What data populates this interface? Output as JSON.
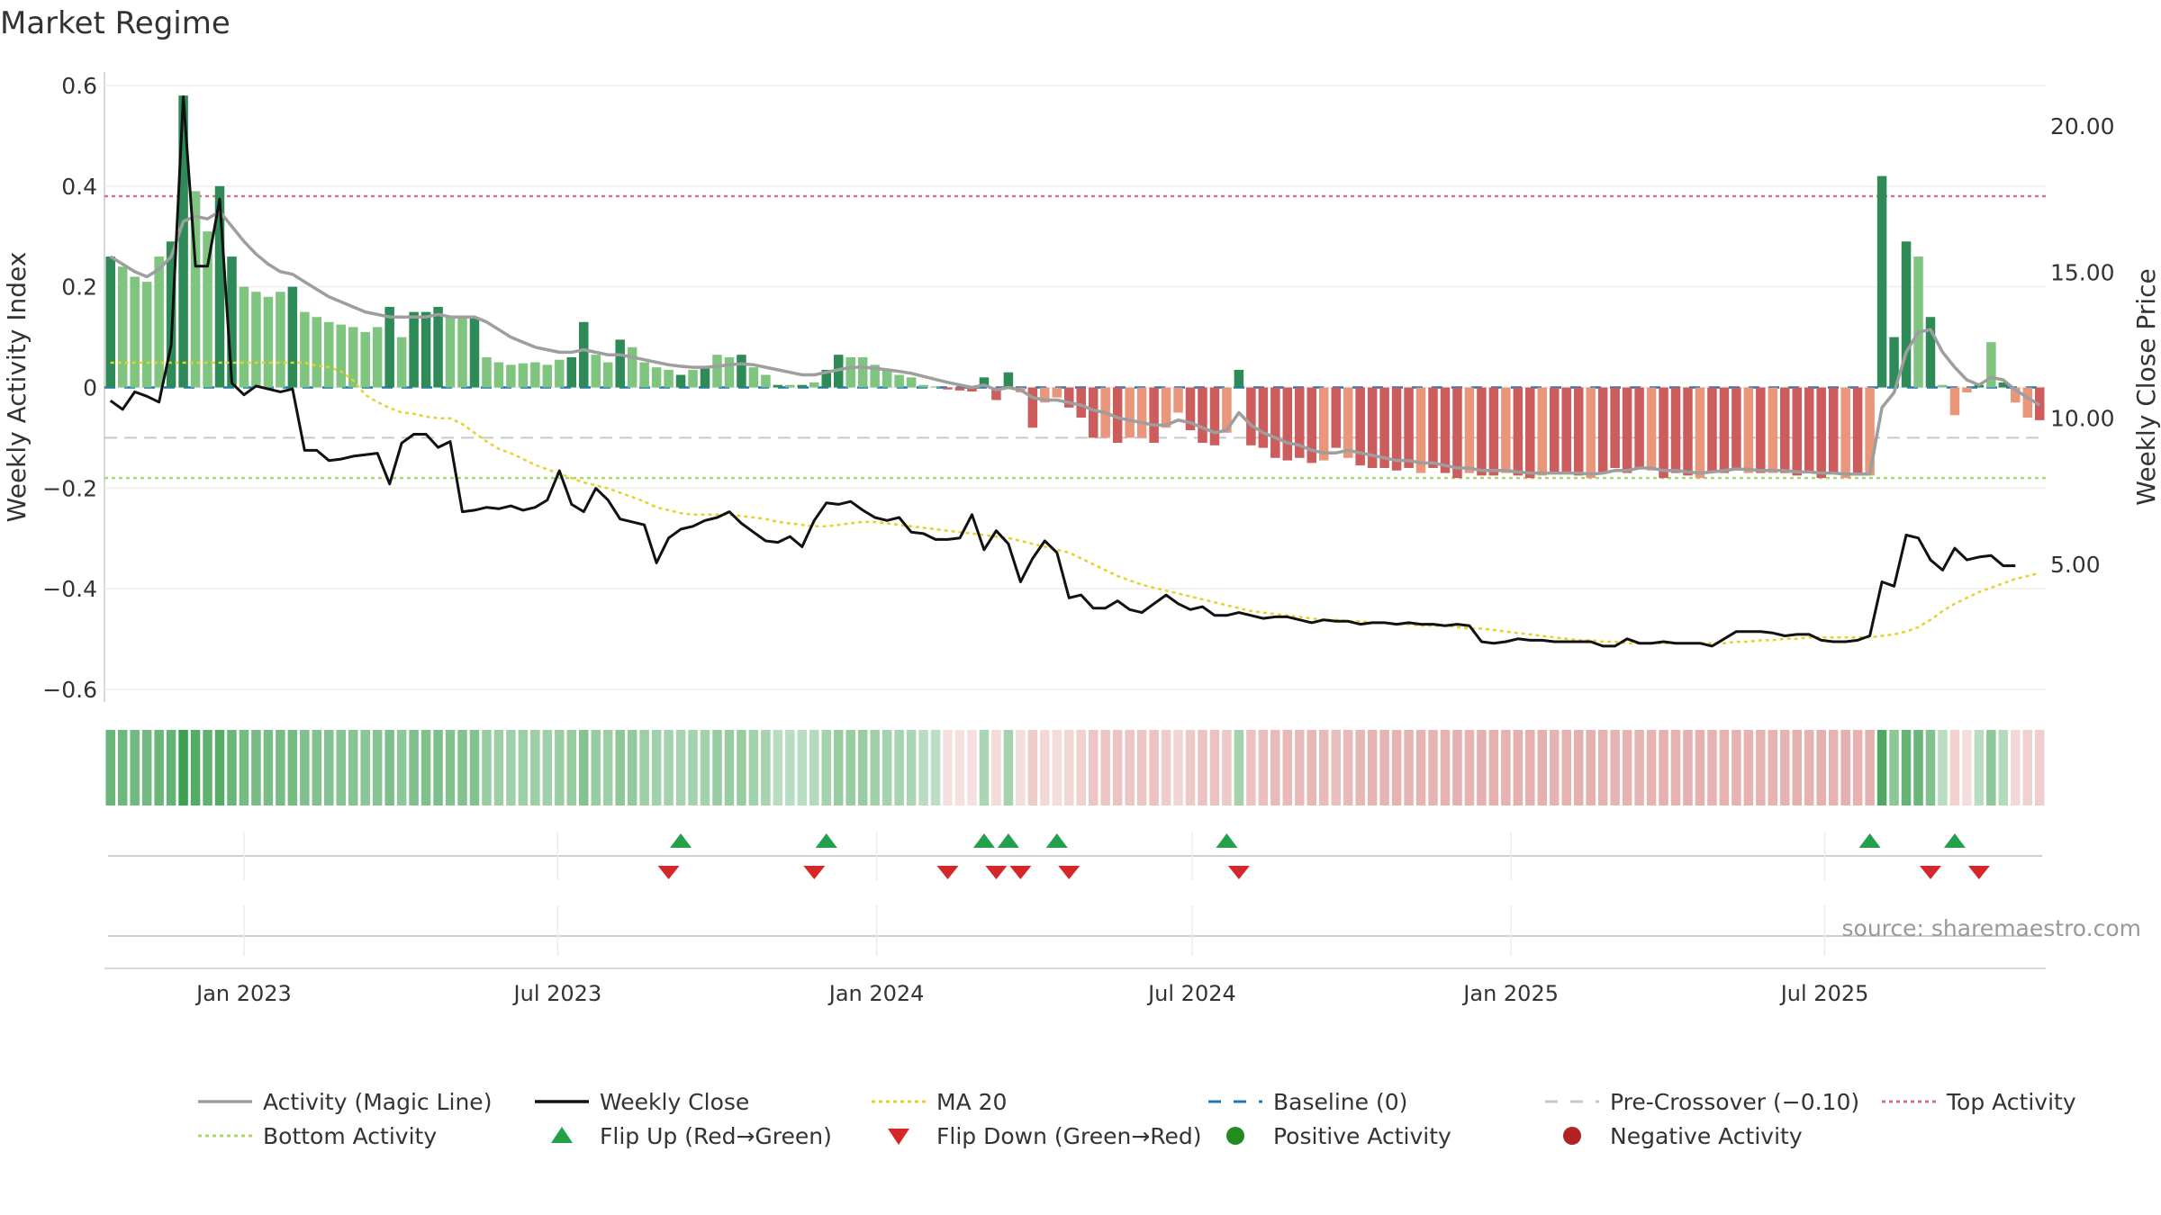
{
  "title": "Market Regime",
  "source": "source: sharemaestro.com",
  "colors": {
    "dark_green": "#2e8b57",
    "light_green": "#7fc47f",
    "dark_red": "#cd5c5c",
    "light_red": "#e9967a",
    "magic_line": "#9e9e9e",
    "close": "#111111",
    "ma20": "#e6d22e",
    "baseline": "#1f77b4",
    "pre_cross": "#c8c8c8",
    "top": "#d9728f",
    "bottom": "#a8d86a",
    "flip_up": "#22a04a",
    "flip_down": "#d62728",
    "pos_dot": "#228b22",
    "neg_dot": "#b22222"
  },
  "chart_data": {
    "type": "bar",
    "x_start_week": "2022-10-16",
    "x_ticks": [
      "Jan 2023",
      "Jul 2023",
      "Jan 2024",
      "Jul 2024",
      "Jan 2025",
      "Jul 2025"
    ],
    "y_left": {
      "label": "Weekly Activity Index",
      "ylim": [
        -0.62,
        0.62
      ],
      "ticks": [
        "0.6",
        "0.4",
        "0.2",
        "0",
        "−0.2",
        "−0.4",
        "−0.6"
      ],
      "tick_values": [
        0.6,
        0.4,
        0.2,
        0,
        -0.2,
        -0.4,
        -0.6
      ]
    },
    "y_right": {
      "label": "Weekly Close Price",
      "ylim": [
        0.8,
        23.7
      ],
      "ticks": [
        "20.00",
        "15.00",
        "10.00",
        "5.00"
      ],
      "tick_values": [
        20,
        15,
        10,
        5
      ]
    },
    "levels": {
      "top": 0.38,
      "bottom": -0.18,
      "pre_crossover": -0.1,
      "baseline": 0
    },
    "activity": [
      0.26,
      0.24,
      0.22,
      0.21,
      0.26,
      0.29,
      0.58,
      0.39,
      0.31,
      0.4,
      0.26,
      0.2,
      0.19,
      0.18,
      0.19,
      0.2,
      0.15,
      0.14,
      0.13,
      0.125,
      0.12,
      0.11,
      0.12,
      0.16,
      0.1,
      0.15,
      0.15,
      0.16,
      0.14,
      0.14,
      0.14,
      0.06,
      0.05,
      0.045,
      0.048,
      0.05,
      0.045,
      0.055,
      0.06,
      0.13,
      0.065,
      0.05,
      0.095,
      0.08,
      0.05,
      0.04,
      0.035,
      0.025,
      0.035,
      0.04,
      0.065,
      0.06,
      0.065,
      0.04,
      0.025,
      0.005,
      0.005,
      0.005,
      0.01,
      0.035,
      0.065,
      0.06,
      0.06,
      0.045,
      0.035,
      0.025,
      0.02,
      0.005,
      0.002,
      -0.004,
      -0.006,
      -0.008,
      0.02,
      -0.025,
      0.03,
      -0.01,
      -0.08,
      -0.03,
      -0.02,
      -0.04,
      -0.06,
      -0.1,
      -0.1,
      -0.11,
      -0.1,
      -0.1,
      -0.11,
      -0.08,
      -0.05,
      -0.085,
      -0.11,
      -0.115,
      -0.09,
      0.035,
      -0.115,
      -0.12,
      -0.14,
      -0.145,
      -0.14,
      -0.15,
      -0.145,
      -0.12,
      -0.14,
      -0.155,
      -0.16,
      -0.16,
      -0.165,
      -0.16,
      -0.17,
      -0.16,
      -0.17,
      -0.18,
      -0.17,
      -0.175,
      -0.175,
      -0.17,
      -0.175,
      -0.18,
      -0.175,
      -0.17,
      -0.17,
      -0.175,
      -0.18,
      -0.17,
      -0.16,
      -0.17,
      -0.16,
      -0.165,
      -0.18,
      -0.17,
      -0.175,
      -0.18,
      -0.17,
      -0.17,
      -0.165,
      -0.17,
      -0.17,
      -0.17,
      -0.17,
      -0.175,
      -0.17,
      -0.18,
      -0.17,
      -0.18,
      -0.17,
      -0.175,
      0.42,
      0.1,
      0.29,
      0.26,
      0.14,
      0.005,
      -0.055,
      -0.01,
      0.005,
      0.09,
      0.01,
      -0.03,
      -0.06,
      -0.065
    ],
    "activity_shade": [
      1,
      0,
      0,
      0,
      0,
      1,
      1,
      0,
      0,
      1,
      1,
      0,
      0,
      0,
      0,
      1,
      0,
      0,
      0,
      0,
      0,
      0,
      0,
      1,
      0,
      1,
      1,
      1,
      0,
      0,
      1,
      0,
      0,
      0,
      0,
      0,
      0,
      0,
      1,
      1,
      0,
      0,
      1,
      0,
      0,
      0,
      0,
      1,
      0,
      1,
      0,
      0,
      1,
      0,
      0,
      1,
      0,
      1,
      0,
      1,
      1,
      0,
      0,
      0,
      0,
      0,
      0,
      0,
      0,
      1,
      1,
      1,
      1,
      1,
      1,
      0,
      1,
      0,
      0,
      1,
      1,
      1,
      0,
      1,
      0,
      0,
      1,
      0,
      0,
      1,
      1,
      1,
      0,
      1,
      1,
      1,
      1,
      1,
      1,
      1,
      0,
      1,
      0,
      1,
      1,
      1,
      1,
      1,
      0,
      1,
      1,
      1,
      0,
      1,
      1,
      0,
      1,
      1,
      0,
      1,
      1,
      1,
      0,
      1,
      1,
      1,
      1,
      0,
      1,
      1,
      1,
      0,
      1,
      1,
      1,
      0,
      1,
      0,
      1,
      1,
      1,
      1,
      1,
      0,
      1,
      0,
      1,
      1,
      1,
      0,
      1,
      0,
      0,
      0,
      1,
      0,
      1,
      0,
      0,
      1,
      1
    ],
    "magic_line": [
      0.26,
      0.245,
      0.23,
      0.22,
      0.235,
      0.26,
      0.33,
      0.34,
      0.335,
      0.35,
      0.32,
      0.29,
      0.265,
      0.245,
      0.23,
      0.225,
      0.21,
      0.195,
      0.18,
      0.17,
      0.16,
      0.15,
      0.145,
      0.14,
      0.14,
      0.14,
      0.14,
      0.145,
      0.14,
      0.14,
      0.14,
      0.13,
      0.115,
      0.1,
      0.09,
      0.08,
      0.075,
      0.07,
      0.07,
      0.075,
      0.07,
      0.065,
      0.065,
      0.06,
      0.055,
      0.05,
      0.045,
      0.042,
      0.04,
      0.04,
      0.042,
      0.045,
      0.047,
      0.045,
      0.04,
      0.035,
      0.03,
      0.025,
      0.025,
      0.03,
      0.035,
      0.04,
      0.04,
      0.038,
      0.035,
      0.032,
      0.028,
      0.022,
      0.016,
      0.01,
      0.005,
      0,
      0.005,
      -0.005,
      0,
      -0.005,
      -0.02,
      -0.025,
      -0.025,
      -0.03,
      -0.035,
      -0.045,
      -0.05,
      -0.06,
      -0.065,
      -0.07,
      -0.075,
      -0.075,
      -0.065,
      -0.07,
      -0.08,
      -0.09,
      -0.085,
      -0.05,
      -0.075,
      -0.09,
      -0.1,
      -0.11,
      -0.115,
      -0.125,
      -0.13,
      -0.13,
      -0.125,
      -0.13,
      -0.135,
      -0.14,
      -0.145,
      -0.145,
      -0.15,
      -0.15,
      -0.155,
      -0.16,
      -0.16,
      -0.165,
      -0.165,
      -0.165,
      -0.168,
      -0.17,
      -0.17,
      -0.17,
      -0.17,
      -0.17,
      -0.172,
      -0.17,
      -0.165,
      -0.165,
      -0.16,
      -0.16,
      -0.165,
      -0.165,
      -0.168,
      -0.17,
      -0.168,
      -0.165,
      -0.162,
      -0.163,
      -0.165,
      -0.165,
      -0.165,
      -0.168,
      -0.168,
      -0.17,
      -0.17,
      -0.172,
      -0.172,
      -0.172,
      -0.04,
      -0.01,
      0.07,
      0.11,
      0.115,
      0.07,
      0.04,
      0.015,
      0.005,
      0.02,
      0.015,
      -0.005,
      -0.02,
      -0.035
    ],
    "weekly_close": [
      10.6,
      10.3,
      10.9,
      10.75,
      10.55,
      12.5,
      21.0,
      15.2,
      15.2,
      17.5,
      11.2,
      10.8,
      11.1,
      11.0,
      10.9,
      11.0,
      8.9,
      8.9,
      8.55,
      8.6,
      8.7,
      8.75,
      8.8,
      7.75,
      9.15,
      9.45,
      9.45,
      9.0,
      9.2,
      6.8,
      6.85,
      6.95,
      6.9,
      7.0,
      6.85,
      6.95,
      7.2,
      8.2,
      7.05,
      6.8,
      7.6,
      7.2,
      6.55,
      6.45,
      6.35,
      5.05,
      5.9,
      6.2,
      6.3,
      6.5,
      6.6,
      6.8,
      6.4,
      6.1,
      5.8,
      5.75,
      5.95,
      5.6,
      6.5,
      7.1,
      7.05,
      7.15,
      6.85,
      6.6,
      6.5,
      6.6,
      6.1,
      6.05,
      5.85,
      5.85,
      5.9,
      6.7,
      5.5,
      6.15,
      5.7,
      4.4,
      5.2,
      5.8,
      5.4,
      3.85,
      3.95,
      3.5,
      3.5,
      3.75,
      3.45,
      3.35,
      3.65,
      3.95,
      3.65,
      3.45,
      3.55,
      3.25,
      3.25,
      3.35,
      3.25,
      3.15,
      3.2,
      3.2,
      3.1,
      3.0,
      3.1,
      3.05,
      3.05,
      2.95,
      3.0,
      3.0,
      2.95,
      3.0,
      2.95,
      2.95,
      2.9,
      2.95,
      2.9,
      2.35,
      2.3,
      2.35,
      2.45,
      2.4,
      2.4,
      2.35,
      2.35,
      2.35,
      2.35,
      2.2,
      2.2,
      2.45,
      2.3,
      2.3,
      2.35,
      2.3,
      2.3,
      2.3,
      2.2,
      2.45,
      2.7,
      2.7,
      2.7,
      2.65,
      2.55,
      2.6,
      2.6,
      2.4,
      2.35,
      2.35,
      2.4,
      2.55,
      4.4,
      4.25,
      6.0,
      5.9,
      5.15,
      4.8,
      5.55,
      5.15,
      5.25,
      5.3,
      4.95,
      4.95
    ],
    "ma20": [
      11.9,
      11.9,
      11.9,
      11.9,
      11.9,
      11.9,
      11.9,
      11.9,
      11.9,
      11.9,
      11.9,
      11.9,
      11.9,
      11.9,
      11.9,
      11.9,
      11.9,
      11.8,
      11.75,
      11.6,
      11.3,
      10.8,
      10.55,
      10.35,
      10.2,
      10.15,
      10.05,
      10.0,
      10.0,
      9.8,
      9.5,
      9.2,
      8.95,
      8.8,
      8.6,
      8.4,
      8.25,
      8.1,
      7.95,
      7.8,
      7.7,
      7.6,
      7.45,
      7.3,
      7.15,
      6.95,
      6.85,
      6.75,
      6.7,
      6.7,
      6.7,
      6.7,
      6.65,
      6.6,
      6.55,
      6.45,
      6.4,
      6.35,
      6.3,
      6.3,
      6.35,
      6.4,
      6.45,
      6.45,
      6.4,
      6.35,
      6.3,
      6.25,
      6.2,
      6.15,
      6.1,
      6.05,
      6.0,
      5.95,
      5.9,
      5.8,
      5.7,
      5.6,
      5.5,
      5.4,
      5.2,
      5.0,
      4.8,
      4.6,
      4.45,
      4.3,
      4.2,
      4.1,
      4.0,
      3.9,
      3.8,
      3.7,
      3.6,
      3.5,
      3.4,
      3.35,
      3.3,
      3.25,
      3.2,
      3.15,
      3.1,
      3.1,
      3.05,
      3.05,
      3.0,
      3.0,
      2.95,
      2.95,
      2.9,
      2.9,
      2.9,
      2.85,
      2.8,
      2.8,
      2.75,
      2.7,
      2.65,
      2.6,
      2.55,
      2.5,
      2.45,
      2.4,
      2.4,
      2.35,
      2.35,
      2.3,
      2.3,
      2.3,
      2.3,
      2.3,
      2.3,
      2.3,
      2.3,
      2.3,
      2.35,
      2.35,
      2.4,
      2.4,
      2.45,
      2.45,
      2.5,
      2.5,
      2.5,
      2.5,
      2.5,
      2.5,
      2.55,
      2.6,
      2.7,
      2.85,
      3.1,
      3.4,
      3.65,
      3.85,
      4.05,
      4.2,
      4.35,
      4.5,
      4.6,
      4.7
    ],
    "flip_up_weeks": [
      47,
      59,
      72,
      74,
      78,
      92,
      145,
      152
    ],
    "flip_down_weeks": [
      46,
      58,
      69,
      73,
      75,
      79,
      93,
      150,
      154
    ],
    "legend": [
      {
        "label": "Activity (Magic Line)",
        "style": "line",
        "color": "#9e9e9e"
      },
      {
        "label": "Weekly Close",
        "style": "line",
        "color": "#111111"
      },
      {
        "label": "MA 20",
        "style": "dotted",
        "color": "#e6d22e"
      },
      {
        "label": "Baseline (0)",
        "style": "dashed",
        "color": "#1f77b4"
      },
      {
        "label": "Pre-Crossover (−0.10)",
        "style": "dashed",
        "color": "#c8c8c8"
      },
      {
        "label": "Top Activity",
        "style": "dotted",
        "color": "#d9728f"
      },
      {
        "label": "Bottom Activity",
        "style": "dotted",
        "color": "#a8d86a"
      },
      {
        "label": "Flip Up (Red→Green)",
        "style": "triangle-up",
        "color": "#22a04a"
      },
      {
        "label": "Flip Down (Green→Red)",
        "style": "triangle-down",
        "color": "#d62728"
      },
      {
        "label": "Positive Activity",
        "style": "dot",
        "color": "#228b22"
      },
      {
        "label": "Negative Activity",
        "style": "dot",
        "color": "#b22222"
      }
    ]
  }
}
